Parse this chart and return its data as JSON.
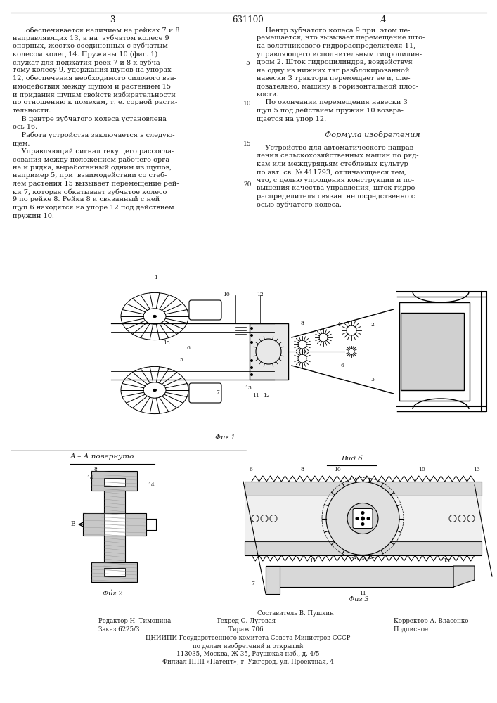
{
  "page_number_center": "631100",
  "page_col_left": "3",
  "page_col_right": "4",
  "background_color": "#ffffff",
  "text_color": "#1a1a1a",
  "col_left_text": [
    "     .обеспечивается наличием на рейках 7 и 8",
    "направляющих 13, а на  зубчатом колесе 9",
    "опорных, жестко соединенных с зубчатым",
    "колесом колец 14. Пружины 10 (фиг. 1)",
    "служат для поджатия реек 7 и 8 к зубча-",
    "тому колесу 9, удержания щупов на упорах",
    "12, обеспечения необходимого силового вза-",
    "имодействия между щупом и растением 15",
    "и придания щупам свойств избирательности",
    "по отношению к помехам, т. е. сорной расти-",
    "тельности.",
    "    В центре зубчатого колеса установлена",
    "ось 16.",
    "    Работа устройства заключается в следую-",
    "щем.",
    "    Управляющий сигнал текущего рассогла-",
    "сования между положением рабочего орга-",
    "на и рядка, выработанный одним из щупов,",
    "например 5, при  взаимодействии со стеб-",
    "лем растения 15 вызывает перемещение рей-",
    "ки 7, которая обкатывает зубчатое колесо",
    "9 по рейке 8. Рейка 8 и связанный с ней",
    "щуп 6 находятся на упоре 12 под действием",
    "пружин 10."
  ],
  "col_right_text_top": [
    "    Центр зубчатого колеса 9 при  этом пе-",
    "ремещается, что вызывает перемещение што-",
    "ка золотникового гидрораспределителя 11,",
    "управляющего исполнительным гидроцилин-",
    "дром 2. Шток гидроцилиндра, воздействуя",
    "на одну из нижних тяг разблокированной",
    "навески 3 трактора перемещает ее и, сле-",
    "довательно, машину в горизонтальной плос-",
    "кости.",
    "    По окончании перемещения навески 3",
    "щуп 5 под действием пружин 10 возвра-",
    "щается на упор 12."
  ],
  "formula_title": "Формула изобретения",
  "formula_text": [
    "    Устройство для автоматического направ-",
    "ления сельскохозяйственных машин по ряд-",
    "кам или междурядьям стеблевых культур",
    "по авт. св. № 411793, отличающееся тем,",
    "что, с целью упрощения конструкции и по-",
    "вышения качества управления, шток гидро-",
    "распределителя связан  непосредственно с",
    "осью зубчатого колеса."
  ],
  "line_numbers": [
    "5",
    "10",
    "15",
    "20"
  ],
  "fig1_label": "Фиг 1",
  "fig2_label": "Фиг 2",
  "fig3_label": "Фиг 3",
  "section_label": "А – А повернуто",
  "view_label": "Вид б",
  "footer_line0": "Составитель В. Пушкин",
  "footer_line1a": "Редактор Н. Тимонина",
  "footer_line1b": "Техред О. Луговая",
  "footer_line1c": "Корректор А. Власенко",
  "footer_line2a": "Заказ 6225/3",
  "footer_line2b": "Тираж 706",
  "footer_line2c": "Подписное",
  "footer_line3": "ЦНИИПИ Государственного комитета Совета Министров СССР",
  "footer_line4": "по делам изобретений и открытий",
  "footer_line5": "113035, Москва, Ж-35, Раушская наб., д. 4/5",
  "footer_line6": "Филиал ППП «Патент», г. Ужгород, ул. Проектная, 4",
  "font_size_body": 7.0,
  "font_size_small": 6.2,
  "font_size_header": 8.5,
  "font_size_formula_title": 8.0
}
